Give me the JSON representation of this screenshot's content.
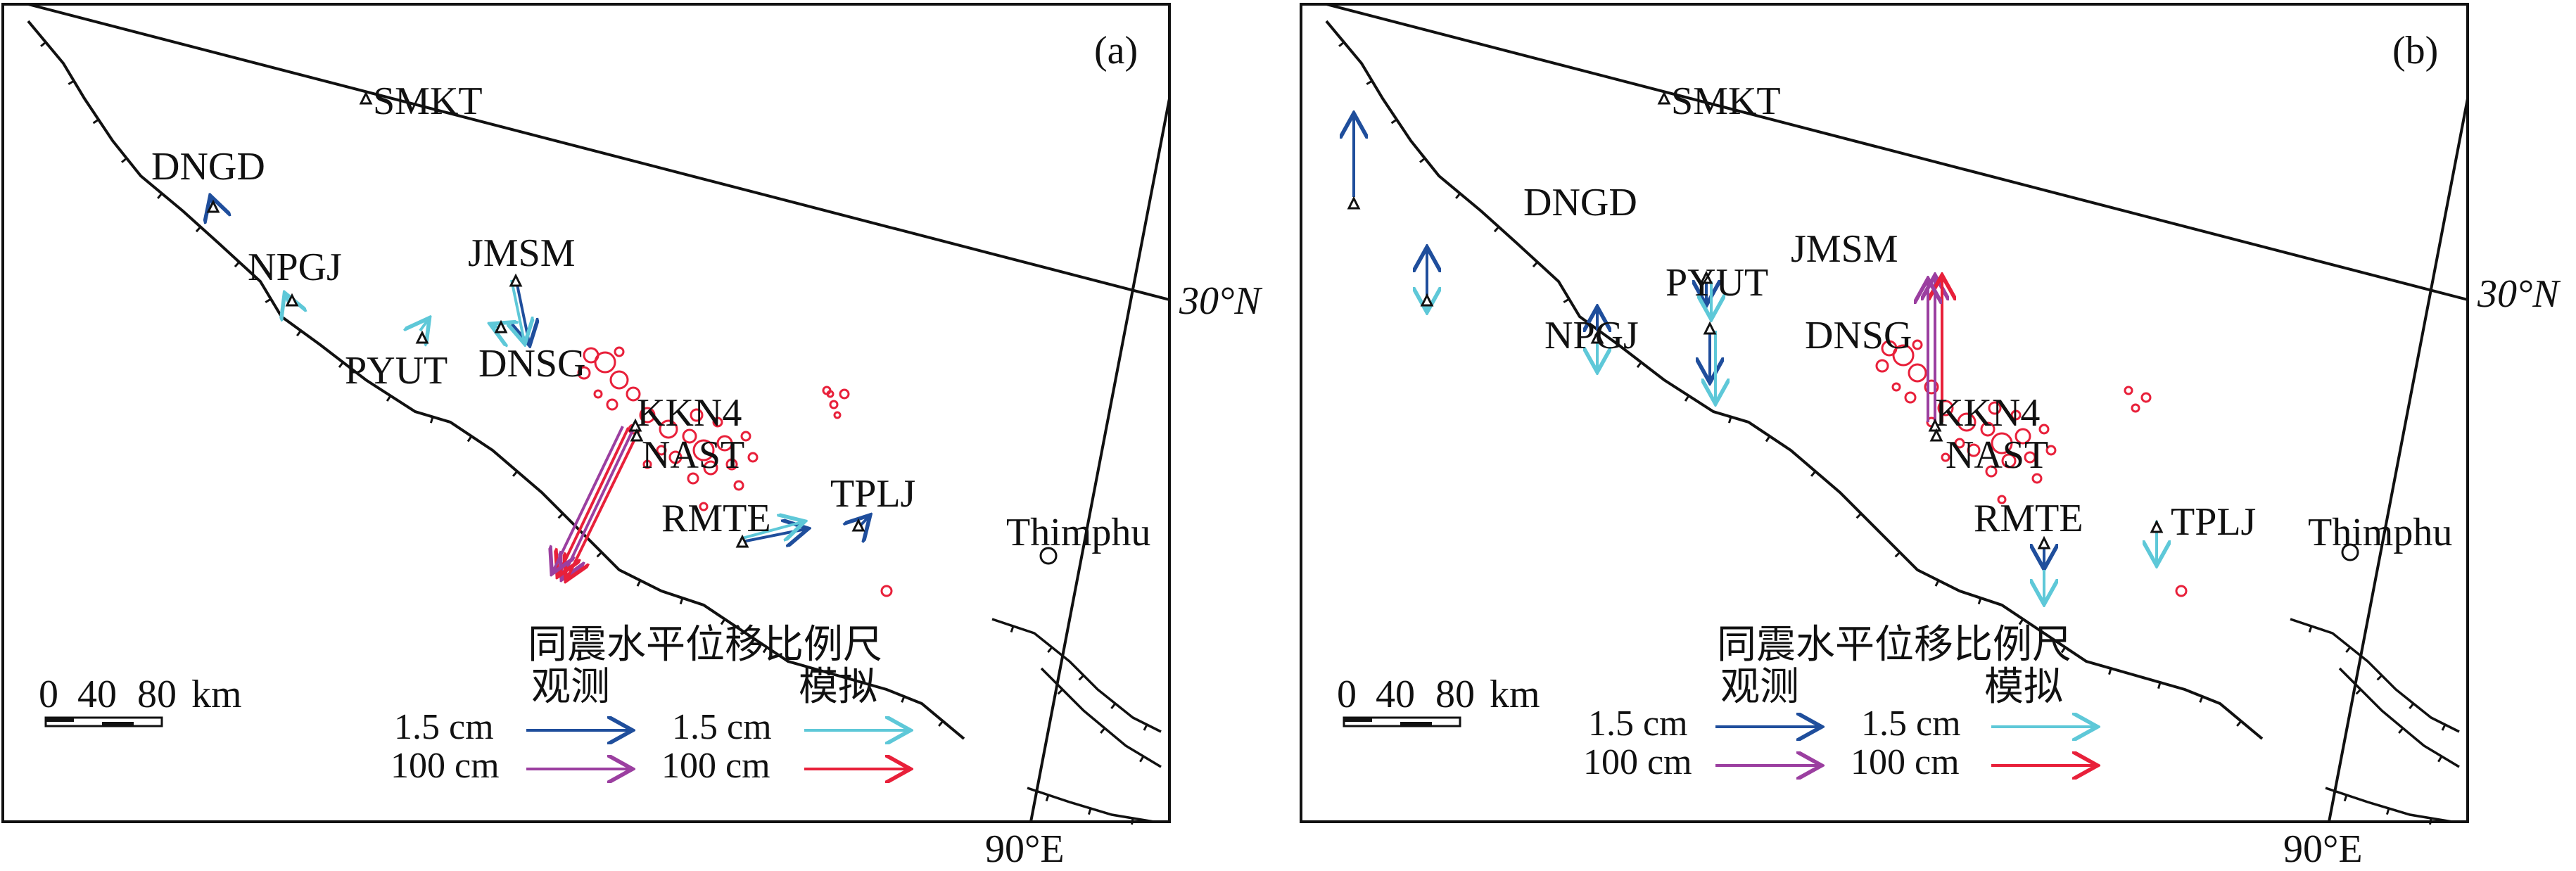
{
  "panels": [
    {
      "id": "a",
      "label": "(a)",
      "stations": [
        "SMKT",
        "DNGD",
        "NPGJ",
        "JMSM",
        "PYUT",
        "DNSG",
        "KKN4",
        "NAST",
        "RMTE",
        "TPLJ"
      ],
      "city": "Thimphu",
      "lat_label": "30°N",
      "lon_label": "90°E",
      "scalebar": {
        "ticks": [
          "0",
          "40",
          "80"
        ],
        "unit": "km"
      },
      "legend": {
        "title": "同震水平位移比例尺",
        "observed": "观测",
        "modeled": "模拟",
        "rows": [
          "1.5 cm",
          "100 cm"
        ]
      }
    },
    {
      "id": "b",
      "label": "(b)",
      "stations": [
        "SMKT",
        "DNGD",
        "NPGJ",
        "JMSM",
        "PYUT",
        "DNSG",
        "KKN4",
        "NAST",
        "RMTE",
        "TPLJ"
      ],
      "city": "Thimphu",
      "lat_label": "30°N",
      "lon_label": "90°E",
      "scalebar": {
        "ticks": [
          "0",
          "40",
          "80"
        ],
        "unit": "km"
      },
      "legend": {
        "title": "同震水平位移比例尺",
        "observed": "观测",
        "modeled": "模拟",
        "rows": [
          "1.5 cm",
          "100 cm"
        ]
      }
    }
  ],
  "colors": {
    "observed_small": "#1f4e9c",
    "modeled_small": "#5ec8d8",
    "observed_large": "#9b3fa0",
    "modeled_large": "#e8203a",
    "aftershock": "#e8203a",
    "fault": "#111111"
  }
}
